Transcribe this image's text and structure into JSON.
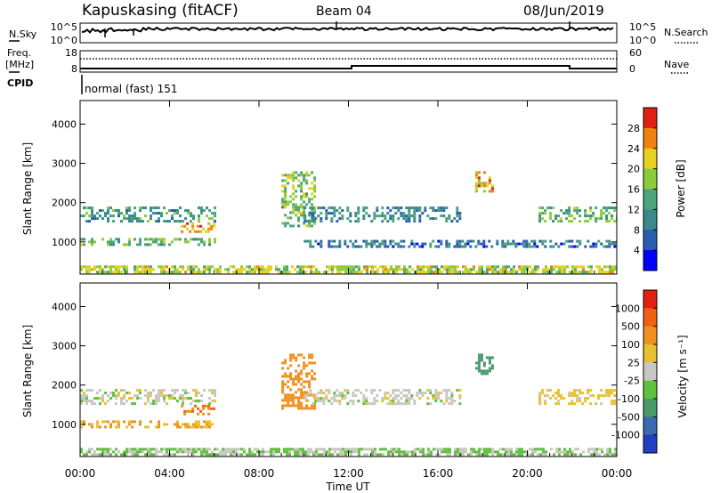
{
  "header": {
    "station": "Kapuskasing (fitACF)",
    "beam": "Beam 04",
    "date": "08/Jun/2019"
  },
  "strip_nsky": {
    "left_label": "N.Sky",
    "left_ticks": [
      "10^5",
      "10^0"
    ],
    "right_label": "N.Search",
    "right_ticks": [
      "10^5",
      "10^0"
    ]
  },
  "strip_freq": {
    "left_label_1": "Freq.",
    "left_label_2": "[MHz]",
    "left_ticks": [
      "18",
      "8"
    ],
    "right_label": "Nave",
    "right_ticks": [
      "60",
      "0"
    ],
    "cpid_label": "CPID"
  },
  "mode_text": "normal (fast) 151",
  "x_axis": {
    "title": "Time UT",
    "ticks": [
      "00:00",
      "04:00",
      "08:00",
      "12:00",
      "16:00",
      "20:00",
      "00:00"
    ]
  },
  "power_panel": {
    "ylabel": "Slant Range [km]",
    "y_ticks": [
      "4000",
      "3000",
      "2000",
      "1000"
    ],
    "colorbar_label": "Power [dB]",
    "colorbar_ticks": [
      "28",
      "24",
      "20",
      "16",
      "12",
      "8",
      "4"
    ]
  },
  "velocity_panel": {
    "ylabel": "Slant Range [km]",
    "y_ticks": [
      "4000",
      "3000",
      "2000",
      "1000"
    ],
    "colorbar_label": "Velocity [m s⁻¹]",
    "colorbar_ticks": [
      "1000",
      "500",
      "100",
      "25",
      "-25",
      "-100",
      "-500",
      "-1000"
    ]
  },
  "chart_data": [
    {
      "type": "heatmap",
      "title": "",
      "xlabel": "Time UT",
      "ylabel": "Slant Range [km]",
      "xlim": [
        "00:00",
        "24:00"
      ],
      "ylim": [
        180,
        4600
      ],
      "colorbar": {
        "label": "Power [dB]",
        "range": [
          0,
          30
        ],
        "ticks": [
          4,
          8,
          12,
          16,
          20,
          24,
          28
        ]
      },
      "colors": [
        "#0000ff",
        "#2a5bb0",
        "#3a8a8a",
        "#4aa57a",
        "#8ccc3a",
        "#e8d020",
        "#f08010",
        "#e02010"
      ],
      "echo_regions": [
        {
          "time_start": "00:00",
          "time_end": "24:00",
          "range_start": 200,
          "range_end": 400,
          "power": 18
        },
        {
          "time_start": "00:00",
          "time_end": "06:00",
          "range_start": 900,
          "range_end": 1100,
          "power": 14
        },
        {
          "time_start": "00:00",
          "time_end": "06:00",
          "range_start": 1550,
          "range_end": 1900,
          "power": 12
        },
        {
          "time_start": "04:30",
          "time_end": "06:00",
          "range_start": 1250,
          "range_end": 1500,
          "power": 22
        },
        {
          "time_start": "09:00",
          "time_end": "10:30",
          "range_start": 1400,
          "range_end": 2800,
          "power": 16
        },
        {
          "time_start": "10:00",
          "time_end": "17:00",
          "range_start": 1500,
          "range_end": 1900,
          "power": 10
        },
        {
          "time_start": "10:00",
          "time_end": "24:00",
          "range_start": 850,
          "range_end": 1050,
          "power": 8
        },
        {
          "time_start": "17:40",
          "time_end": "18:30",
          "range_start": 2300,
          "range_end": 2800,
          "power": 22
        },
        {
          "time_start": "20:30",
          "time_end": "24:00",
          "range_start": 1500,
          "range_end": 1900,
          "power": 14
        }
      ]
    },
    {
      "type": "heatmap",
      "title": "",
      "xlabel": "Time UT",
      "ylabel": "Slant Range [km]",
      "xlim": [
        "00:00",
        "24:00"
      ],
      "ylim": [
        180,
        4600
      ],
      "colorbar": {
        "label": "Velocity [m s⁻¹]",
        "ticks": [
          1000,
          500,
          100,
          25,
          -25,
          -100,
          -500,
          -1000
        ]
      },
      "colors": [
        "#2040c0",
        "#3a6ab0",
        "#4a9a6a",
        "#60c040",
        "#c8c8c0",
        "#e8c030",
        "#f09020",
        "#f06010",
        "#e02010"
      ],
      "echo_regions": [
        {
          "time_start": "00:00",
          "time_end": "24:00",
          "range_start": 200,
          "range_end": 400,
          "velocity": 25
        },
        {
          "time_start": "00:00",
          "time_end": "06:00",
          "range_start": 900,
          "range_end": 1100,
          "velocity": -100
        },
        {
          "time_start": "00:00",
          "time_end": "06:00",
          "range_start": 1550,
          "range_end": 1900,
          "velocity": 0
        },
        {
          "time_start": "04:30",
          "time_end": "06:00",
          "range_start": 1250,
          "range_end": 1500,
          "velocity": -500
        },
        {
          "time_start": "09:00",
          "time_end": "10:30",
          "range_start": 1400,
          "range_end": 2800,
          "velocity": -300
        },
        {
          "time_start": "10:00",
          "time_end": "17:00",
          "range_start": 1500,
          "range_end": 1900,
          "velocity": 0
        },
        {
          "time_start": "17:40",
          "time_end": "18:30",
          "range_start": 2300,
          "range_end": 2800,
          "velocity": 300
        },
        {
          "time_start": "20:30",
          "time_end": "24:00",
          "range_start": 1500,
          "range_end": 1900,
          "velocity": -50
        }
      ]
    }
  ]
}
